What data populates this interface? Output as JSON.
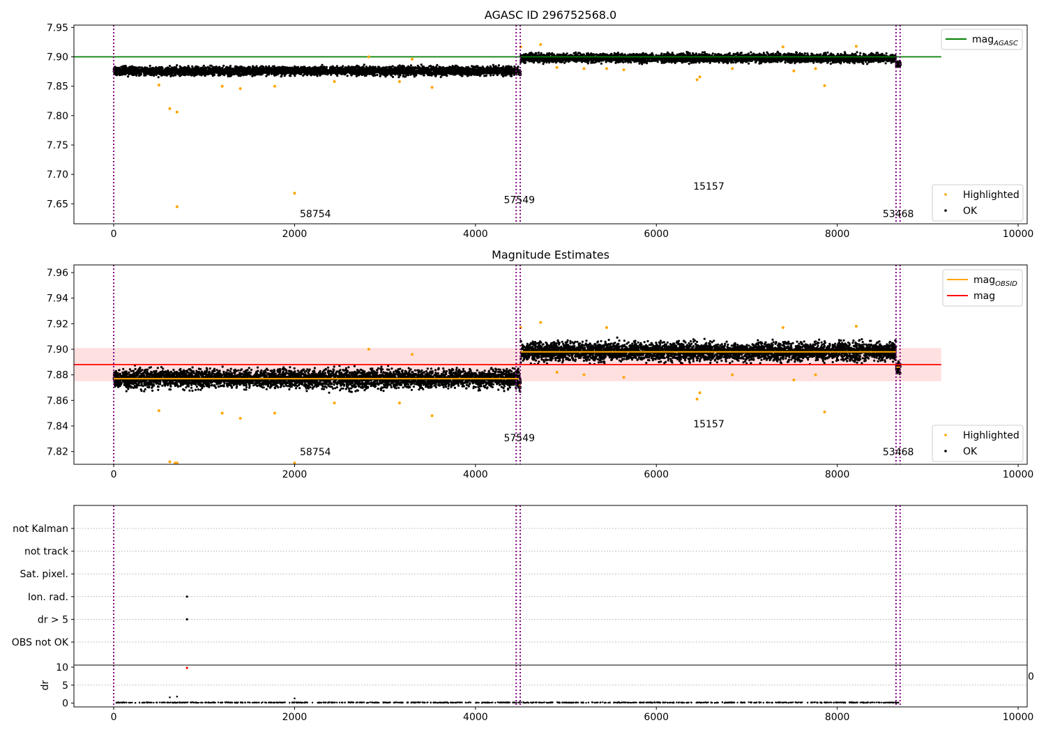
{
  "colors": {
    "ok": "#000000",
    "highlighted": "#ffa500",
    "agasc_line": "#008000",
    "mag_line": "#ff0000",
    "mag_band": "#ffe0e0",
    "obsid_line": "#ffa500",
    "obs_boundary": "#800080",
    "grid": "#b0b0b0"
  },
  "chart_data": [
    {
      "type": "scatter",
      "title": "AGASC ID 296752568.0",
      "xlabel": "",
      "ylabel": "",
      "xlim": [
        -440,
        10100
      ],
      "ylim": [
        7.616,
        7.954
      ],
      "xticks": [
        "0",
        "2000",
        "4000",
        "6000",
        "8000",
        "10000"
      ],
      "yticks": [
        "7.65",
        "7.70",
        "7.75",
        "7.80",
        "7.85",
        "7.90",
        "7.95"
      ],
      "legend_upper": [
        {
          "label": "mag_AGASC",
          "label_main": "mag",
          "label_sub": "AGASC",
          "kind": "line",
          "color": "#008000"
        }
      ],
      "legend_lower": [
        {
          "label": "Highlighted",
          "kind": "marker",
          "color": "#ffa500"
        },
        {
          "label": "OK",
          "kind": "marker",
          "color": "#000000"
        }
      ],
      "reference_lines": [
        {
          "name": "mag_AGASC",
          "y": 7.9,
          "x_range": [
            -440,
            9150
          ]
        }
      ],
      "obs_boundaries": [
        0,
        4450,
        4495,
        8650,
        8695
      ],
      "annotations": [
        {
          "text": "58754",
          "x": 2230,
          "y": 7.627
        },
        {
          "text": "57549",
          "x": 4485,
          "y": 7.651
        },
        {
          "text": "15157",
          "x": 6580,
          "y": 7.674
        },
        {
          "text": "53468",
          "x": 8675,
          "y": 7.627
        }
      ],
      "series": [
        {
          "name": "OK",
          "segments": [
            {
              "x": [
                0,
                4480
              ],
              "center": 7.876,
              "spread": 0.011
            },
            {
              "x": [
                4480,
                4500
              ],
              "center": 7.872,
              "spread": 0.008
            },
            {
              "x": [
                4500,
                8650
              ],
              "center": 7.898,
              "spread": 0.011
            },
            {
              "x": [
                8650,
                8700
              ],
              "center": 7.888,
              "spread": 0.008
            }
          ]
        },
        {
          "name": "Highlighted",
          "x": [
            500,
            620,
            700,
            1200,
            1400,
            1780,
            2000,
            2440,
            2820,
            3160,
            3300,
            3520,
            4500,
            4720,
            4900,
            5200,
            5450,
            5640,
            6450,
            6480,
            6840,
            7400,
            7520,
            7760,
            7860,
            8210
          ],
          "y": [
            7.852,
            7.812,
            7.806,
            7.85,
            7.846,
            7.85,
            7.668,
            7.858,
            7.9,
            7.858,
            7.896,
            7.848,
            7.917,
            7.921,
            7.882,
            7.88,
            7.88,
            7.878,
            7.861,
            7.866,
            7.88,
            7.917,
            7.876,
            7.88,
            7.851,
            7.918
          ]
        },
        {
          "name": "Highlighted_low",
          "x": [
            700
          ],
          "y": [
            7.645
          ]
        }
      ]
    },
    {
      "type": "scatter",
      "title": "Magnitude Estimates",
      "xlabel": "",
      "ylabel": "",
      "xlim": [
        -440,
        10100
      ],
      "ylim": [
        7.81,
        7.966
      ],
      "xticks": [
        "0",
        "2000",
        "4000",
        "6000",
        "8000",
        "10000"
      ],
      "yticks": [
        "7.82",
        "7.84",
        "7.86",
        "7.88",
        "7.90",
        "7.92",
        "7.94",
        "7.96"
      ],
      "legend_upper": [
        {
          "label": "mag_OBSID",
          "label_main": "mag",
          "label_sub": "OBSID",
          "kind": "line",
          "color": "#ffa500"
        },
        {
          "label": "mag",
          "label_main": "mag",
          "label_sub": "",
          "kind": "line",
          "color": "#ff0000"
        }
      ],
      "legend_lower": [
        {
          "label": "Highlighted",
          "kind": "marker",
          "color": "#ffa500"
        },
        {
          "label": "OK",
          "kind": "marker",
          "color": "#000000"
        }
      ],
      "mag": {
        "value": 7.888,
        "band": [
          7.875,
          7.901
        ],
        "x_range": [
          -440,
          9150
        ]
      },
      "mag_obsid": [
        {
          "x": [
            0,
            4480
          ],
          "value": 7.877
        },
        {
          "x": [
            4480,
            4500
          ],
          "value": 7.872
        },
        {
          "x": [
            4500,
            8650
          ],
          "value": 7.898
        },
        {
          "x": [
            8650,
            8700
          ],
          "value": 7.886
        }
      ],
      "obs_boundaries": [
        0,
        4450,
        4495,
        8650,
        8695
      ],
      "annotations": [
        {
          "text": "58754",
          "x": 2230,
          "y": 7.817
        },
        {
          "text": "57549",
          "x": 4485,
          "y": 7.828
        },
        {
          "text": "15157",
          "x": 6580,
          "y": 7.839
        },
        {
          "text": "53468",
          "x": 8675,
          "y": 7.817
        }
      ],
      "series": [
        {
          "name": "OK",
          "segments": [
            {
              "x": [
                0,
                4480
              ],
              "center": 7.877,
              "spread": 0.011
            },
            {
              "x": [
                4480,
                4500
              ],
              "center": 7.872,
              "spread": 0.008
            },
            {
              "x": [
                4500,
                8650
              ],
              "center": 7.898,
              "spread": 0.011
            },
            {
              "x": [
                8650,
                8700
              ],
              "center": 7.886,
              "spread": 0.008
            }
          ]
        },
        {
          "name": "Highlighted",
          "x": [
            500,
            620,
            680,
            700,
            1200,
            1400,
            1780,
            2000,
            2440,
            2820,
            3160,
            3300,
            3520,
            4500,
            4720,
            4900,
            5200,
            5450,
            5640,
            6450,
            6480,
            6840,
            7400,
            7520,
            7760,
            7860,
            8210
          ],
          "y": [
            7.852,
            7.812,
            7.811,
            7.811,
            7.85,
            7.846,
            7.85,
            7.811,
            7.858,
            7.9,
            7.858,
            7.896,
            7.848,
            7.917,
            7.921,
            7.882,
            7.88,
            7.917,
            7.878,
            7.861,
            7.866,
            7.88,
            7.917,
            7.876,
            7.88,
            7.851,
            7.918
          ]
        }
      ]
    },
    {
      "type": "scatter",
      "title": "",
      "xlabel": "",
      "ylabel": "",
      "xlim": [
        -440,
        10100
      ],
      "categories": [
        "not Kalman",
        "not track",
        "Sat. pixel.",
        "Ion. rad.",
        "dr > 5",
        "OBS not OK"
      ],
      "points": [
        {
          "category": "Ion. rad.",
          "x": 810
        },
        {
          "category": "dr > 5",
          "x": 810
        }
      ],
      "obs_boundaries": [
        0,
        4450,
        4495,
        8650,
        8695
      ]
    },
    {
      "type": "scatter",
      "title": "",
      "xlabel": "",
      "ylabel": "dr",
      "xlim": [
        -440,
        10100
      ],
      "ylim": [
        -0.5,
        10.5
      ],
      "xticks": [
        "0",
        "2000",
        "4000",
        "6000",
        "8000",
        "10000"
      ],
      "yticks": [
        "0",
        "5",
        "10"
      ],
      "stray_tick": "0",
      "obs_boundaries": [
        0,
        4450,
        4495,
        8650,
        8695
      ],
      "series": [
        {
          "name": "OK",
          "baseline_x": [
            0,
            8700
          ],
          "baseline_y": 0.15,
          "spread": 0.12,
          "outliers_x": [
            620,
            700,
            2000
          ],
          "outliers_y": [
            1.6,
            1.8,
            1.3
          ]
        },
        {
          "name": "flagged",
          "x": [
            810
          ],
          "y": [
            9.8
          ]
        }
      ]
    }
  ]
}
